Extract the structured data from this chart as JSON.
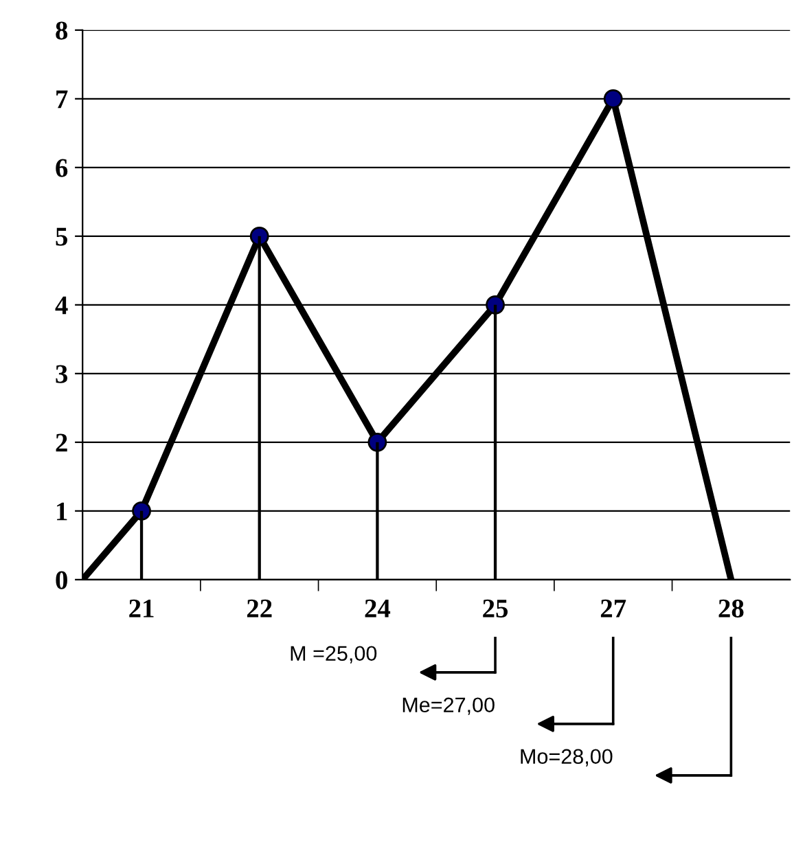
{
  "chart_data": {
    "type": "line",
    "categories": [
      "21",
      "22",
      "24",
      "25",
      "27",
      "28"
    ],
    "series": [
      {
        "color": "#000000",
        "values": [
          1,
          5,
          2,
          4,
          7,
          0
        ],
        "marker": "none"
      },
      {
        "type": "bar",
        "color": "#000000",
        "values": [
          1,
          5,
          2,
          4,
          null,
          null
        ]
      },
      {
        "type": "scatter",
        "color": "#000080",
        "values": [
          1,
          5,
          2,
          4,
          7,
          null
        ],
        "marker": "circle"
      }
    ],
    "ylim": [
      0,
      8
    ],
    "yticks": [
      0,
      1,
      2,
      3,
      4,
      5,
      6,
      7,
      8
    ],
    "grid": "y",
    "annotations": [
      "M =25,00",
      "Me=27,00",
      "Mo=28,00"
    ]
  }
}
